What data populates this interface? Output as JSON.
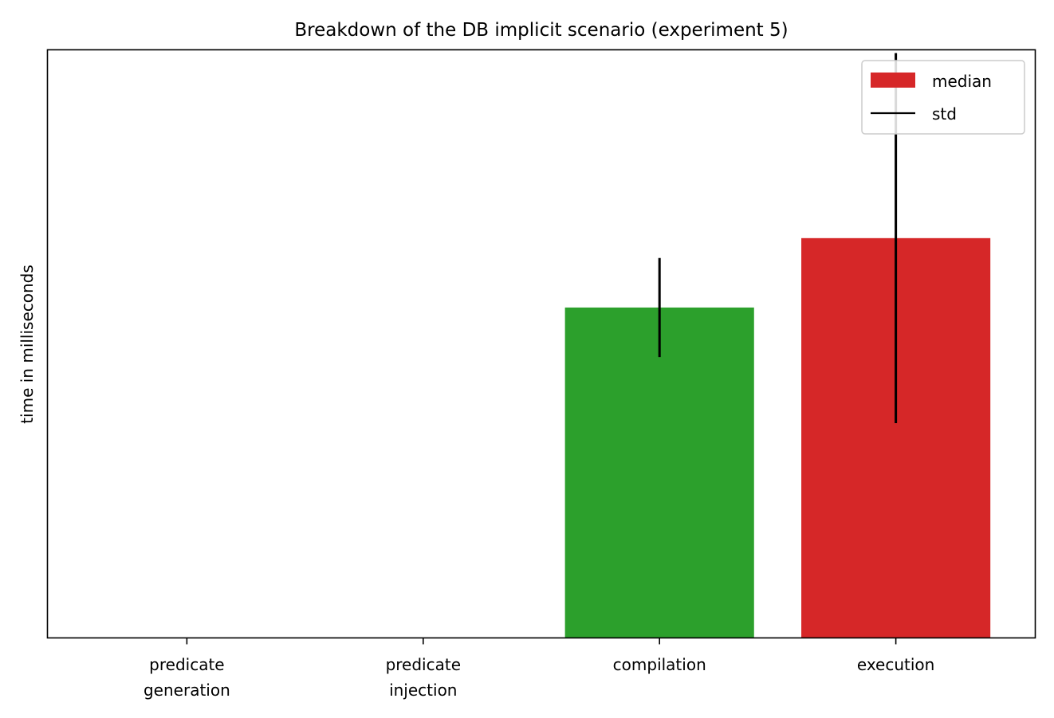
{
  "chart_data": {
    "type": "bar",
    "title": "Breakdown of the DB implicit scenario (experiment 5)",
    "ylabel": "time in milliseconds",
    "xlabel": "",
    "y_tick_labels_shown": false,
    "ylim": [
      0,
      1.78
    ],
    "categories": [
      [
        "predicate",
        "generation"
      ],
      [
        "predicate",
        "injection"
      ],
      [
        "compilation"
      ],
      [
        "execution"
      ]
    ],
    "values": [
      0.0,
      0.0,
      1.0,
      1.21
    ],
    "std": [
      0.0,
      0.0,
      0.15,
      0.56
    ],
    "colors": [
      "#1f77b4",
      "#ff7f0e",
      "#2ca02c",
      "#d62728"
    ],
    "error_color": "#000000",
    "legend": {
      "placement": "top-right",
      "entries": [
        {
          "label": "median",
          "kind": "patch",
          "color": "#d62728"
        },
        {
          "label": "std",
          "kind": "line",
          "color": "#000000"
        }
      ]
    },
    "grid": false
  }
}
